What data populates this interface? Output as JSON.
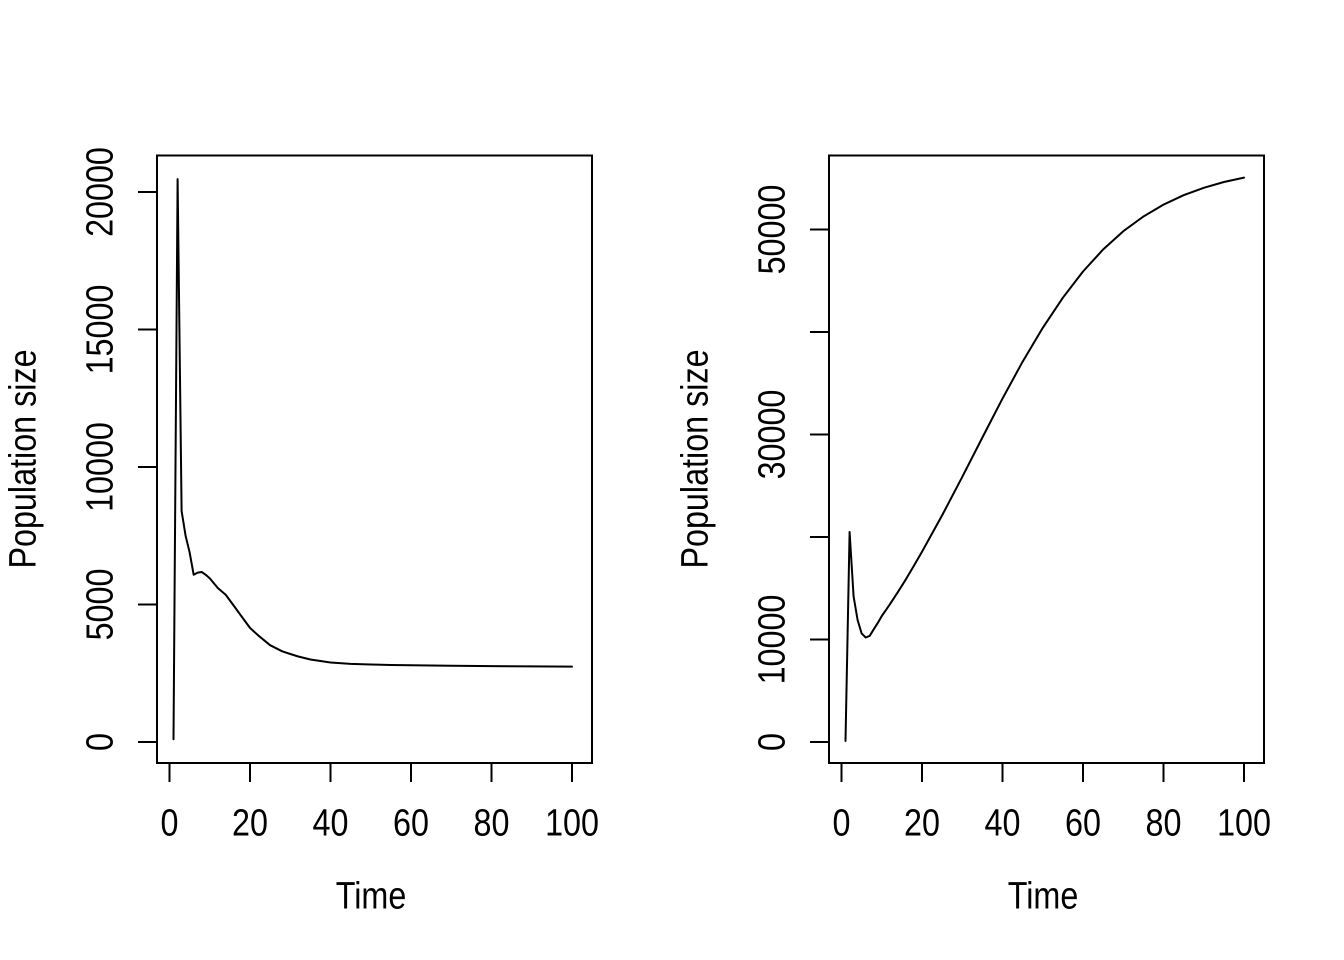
{
  "figure": {
    "background_color": "#ffffff",
    "line_color": "#000000",
    "text_color": "#000000"
  },
  "chart_data": [
    {
      "type": "line",
      "panel": "left",
      "title": "",
      "xlabel": "Time",
      "ylabel": "Population size",
      "xlim": [
        0,
        100
      ],
      "grid": false,
      "legend": false,
      "x_ticks": [
        0,
        20,
        40,
        60,
        80,
        100
      ],
      "y_ticks": [
        {
          "value": 0,
          "label": "0"
        },
        {
          "value": 5000,
          "label": "5000"
        },
        {
          "value": 10000,
          "label": "10000"
        },
        {
          "value": 15000,
          "label": "15000"
        },
        {
          "value": 20000,
          "label": "20000"
        }
      ],
      "series": [
        {
          "name": "population",
          "color": "#000000",
          "x": [
            1,
            2,
            3,
            4,
            5,
            6,
            7,
            8,
            9,
            10,
            12,
            14,
            16,
            18,
            20,
            22,
            25,
            28,
            30,
            32,
            35,
            40,
            45,
            50,
            55,
            60,
            70,
            80,
            90,
            100
          ],
          "y": [
            100,
            20470,
            8400,
            7500,
            6900,
            6080,
            6160,
            6180,
            6080,
            5950,
            5600,
            5350,
            4950,
            4550,
            4150,
            3880,
            3520,
            3300,
            3200,
            3110,
            3000,
            2890,
            2840,
            2820,
            2800,
            2790,
            2770,
            2760,
            2750,
            2740
          ]
        }
      ]
    },
    {
      "type": "line",
      "panel": "right",
      "title": "",
      "xlabel": "Time",
      "ylabel": "Population size",
      "xlim": [
        0,
        100
      ],
      "grid": false,
      "legend": false,
      "x_ticks": [
        0,
        20,
        40,
        60,
        80,
        100
      ],
      "y_ticks": [
        {
          "value": 0,
          "label": "0"
        },
        {
          "value": 10000,
          "label": "10000"
        },
        {
          "value": 20000,
          "label": ""
        },
        {
          "value": 30000,
          "label": "30000"
        },
        {
          "value": 40000,
          "label": ""
        },
        {
          "value": 50000,
          "label": "50000"
        }
      ],
      "series": [
        {
          "name": "population",
          "color": "#000000",
          "x": [
            1,
            2,
            3,
            4,
            5,
            6,
            7,
            8,
            9,
            10,
            12,
            14,
            16,
            18,
            20,
            25,
            30,
            35,
            40,
            45,
            50,
            55,
            60,
            65,
            70,
            75,
            80,
            85,
            90,
            95,
            100
          ],
          "y": [
            100,
            20490,
            14200,
            11900,
            10600,
            10200,
            10350,
            11000,
            11600,
            12290,
            13420,
            14610,
            15870,
            17190,
            18570,
            22110,
            25870,
            29710,
            33500,
            37100,
            40410,
            43350,
            45900,
            48050,
            49830,
            51270,
            52430,
            53350,
            54070,
            54630,
            55060
          ]
        }
      ]
    }
  ]
}
